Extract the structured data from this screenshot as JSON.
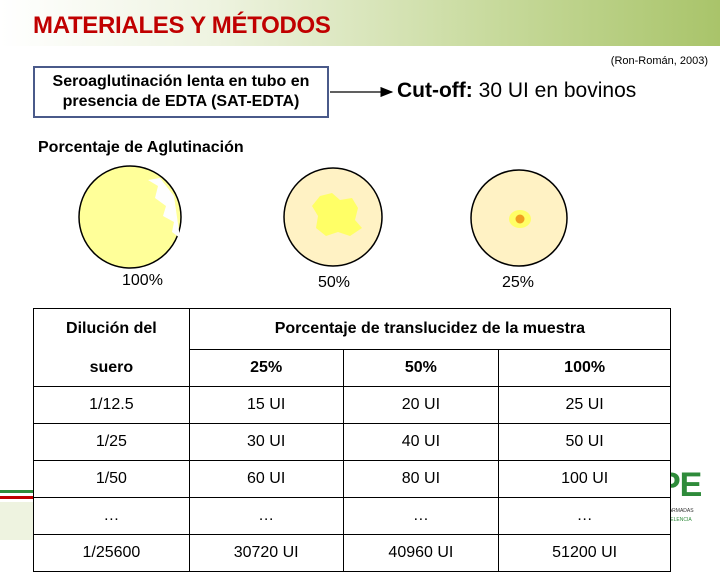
{
  "header": {
    "title": "MATERIALES Y MÉTODOS"
  },
  "citation": "(Ron-Román, 2003)",
  "method_box": {
    "line1": "Seroaglutinación lenta en tubo en",
    "line2": "presencia de EDTA (SAT-EDTA)"
  },
  "cutoff": {
    "label": "Cut-off:",
    "value": "30 UI en bovinos"
  },
  "section_label": "Porcentaje de Aglutinación",
  "agglutination": [
    {
      "label": "100%",
      "fraction": 1.0
    },
    {
      "label": "50%",
      "fraction": 0.5
    },
    {
      "label": "25%",
      "fraction": 0.25
    }
  ],
  "table": {
    "header_left_top": "Dilución del",
    "header_left_bottom": "suero",
    "header_right": "Porcentaje de translucidez de la muestra",
    "columns": [
      "25%",
      "50%",
      "100%"
    ],
    "rows": [
      {
        "dilution": "1/12.5",
        "values": [
          "15 UI",
          "20 UI",
          "25 UI"
        ]
      },
      {
        "dilution": "1/25",
        "values": [
          "30 UI",
          "40 UI",
          "50 UI"
        ]
      },
      {
        "dilution": "1/50",
        "values": [
          "60 UI",
          "80 UI",
          "100 UI"
        ]
      },
      {
        "dilution": "…",
        "values": [
          "…",
          "…",
          "…"
        ]
      },
      {
        "dilution": "1/25600",
        "values": [
          "30720 UI",
          "40960 UI",
          "51200 UI"
        ]
      }
    ]
  },
  "logo": {
    "text": "PE",
    "line1": "ZAS ARMADAS",
    "line2": "EXCELENCIA"
  },
  "colors": {
    "title": "#c00000",
    "logo": "#2e8b3a",
    "border": "#4a5a8a"
  }
}
